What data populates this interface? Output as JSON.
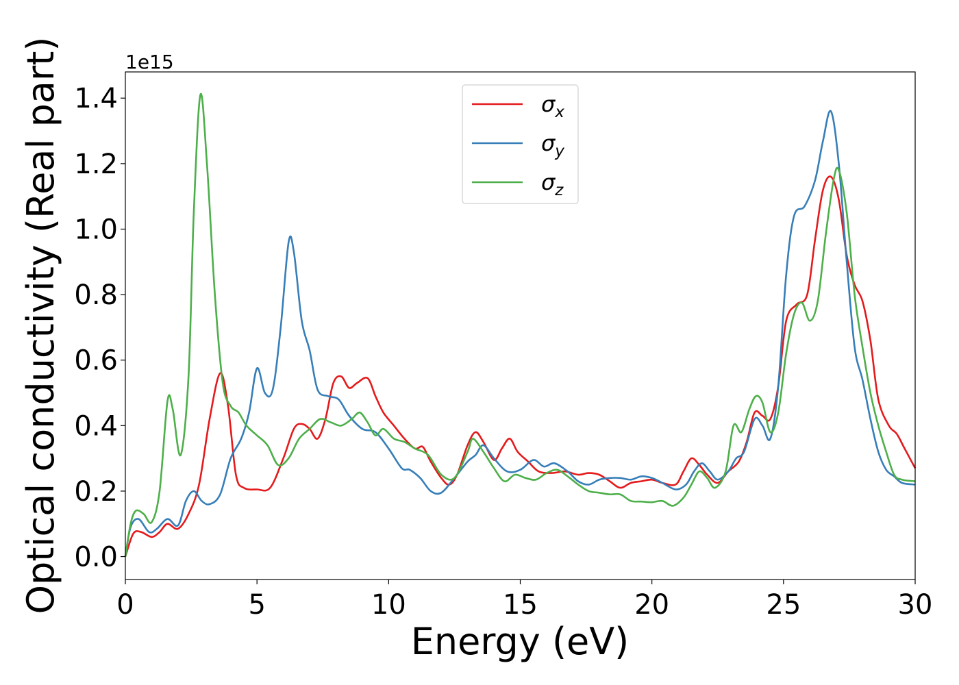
{
  "chart_data": {
    "type": "line",
    "xlabel": "Energy (eV)",
    "ylabel": "Optical conductivity (Real part)",
    "y_offset_label": "1e15",
    "xlim": [
      0,
      30
    ],
    "ylim": [
      -0.07,
      1.48
    ],
    "x_ticks": [
      0,
      5,
      10,
      15,
      20,
      25,
      30
    ],
    "x_tick_labels": [
      "0",
      "5",
      "10",
      "15",
      "20",
      "25",
      "30"
    ],
    "y_ticks": [
      0.0,
      0.2,
      0.4,
      0.6,
      0.8,
      1.0,
      1.2,
      1.4
    ],
    "y_tick_labels": [
      "0.0",
      "0.2",
      "0.4",
      "0.6",
      "0.8",
      "1.0",
      "1.2",
      "1.4"
    ],
    "grid": false,
    "legend_position": "top-center",
    "series": [
      {
        "name": "σx",
        "legend_base": "σ",
        "legend_sub": "x",
        "color": "#e41a1c",
        "points": [
          [
            0,
            0
          ],
          [
            0.3,
            0.07
          ],
          [
            0.6,
            0.075
          ],
          [
            1.0,
            0.06
          ],
          [
            1.3,
            0.075
          ],
          [
            1.6,
            0.1
          ],
          [
            2.0,
            0.085
          ],
          [
            2.4,
            0.13
          ],
          [
            2.8,
            0.22
          ],
          [
            3.2,
            0.42
          ],
          [
            3.6,
            0.56
          ],
          [
            3.9,
            0.46
          ],
          [
            4.2,
            0.25
          ],
          [
            4.5,
            0.21
          ],
          [
            5.0,
            0.205
          ],
          [
            5.5,
            0.21
          ],
          [
            6.0,
            0.3
          ],
          [
            6.4,
            0.39
          ],
          [
            6.7,
            0.405
          ],
          [
            7.0,
            0.39
          ],
          [
            7.3,
            0.36
          ],
          [
            7.6,
            0.42
          ],
          [
            7.9,
            0.53
          ],
          [
            8.2,
            0.55
          ],
          [
            8.5,
            0.515
          ],
          [
            8.8,
            0.53
          ],
          [
            9.2,
            0.545
          ],
          [
            9.5,
            0.49
          ],
          [
            9.8,
            0.44
          ],
          [
            10.2,
            0.4
          ],
          [
            10.6,
            0.36
          ],
          [
            11.0,
            0.33
          ],
          [
            11.3,
            0.335
          ],
          [
            11.6,
            0.29
          ],
          [
            12.0,
            0.24
          ],
          [
            12.3,
            0.22
          ],
          [
            12.6,
            0.25
          ],
          [
            13.0,
            0.34
          ],
          [
            13.3,
            0.38
          ],
          [
            13.6,
            0.35
          ],
          [
            14.0,
            0.295
          ],
          [
            14.3,
            0.33
          ],
          [
            14.6,
            0.36
          ],
          [
            14.9,
            0.32
          ],
          [
            15.3,
            0.29
          ],
          [
            15.7,
            0.26
          ],
          [
            16.2,
            0.255
          ],
          [
            16.7,
            0.26
          ],
          [
            17.2,
            0.25
          ],
          [
            17.6,
            0.255
          ],
          [
            18.0,
            0.25
          ],
          [
            18.4,
            0.23
          ],
          [
            18.8,
            0.21
          ],
          [
            19.2,
            0.225
          ],
          [
            19.6,
            0.23
          ],
          [
            20.0,
            0.235
          ],
          [
            20.4,
            0.225
          ],
          [
            20.9,
            0.22
          ],
          [
            21.2,
            0.26
          ],
          [
            21.5,
            0.3
          ],
          [
            21.8,
            0.28
          ],
          [
            22.1,
            0.25
          ],
          [
            22.5,
            0.225
          ],
          [
            22.9,
            0.26
          ],
          [
            23.3,
            0.29
          ],
          [
            23.6,
            0.35
          ],
          [
            23.9,
            0.44
          ],
          [
            24.2,
            0.43
          ],
          [
            24.5,
            0.42
          ],
          [
            24.8,
            0.52
          ],
          [
            25.1,
            0.72
          ],
          [
            25.5,
            0.77
          ],
          [
            25.9,
            0.8
          ],
          [
            26.2,
            0.97
          ],
          [
            26.5,
            1.12
          ],
          [
            26.8,
            1.16
          ],
          [
            27.1,
            1.09
          ],
          [
            27.4,
            0.92
          ],
          [
            27.7,
            0.83
          ],
          [
            28.0,
            0.78
          ],
          [
            28.3,
            0.66
          ],
          [
            28.6,
            0.48
          ],
          [
            29.0,
            0.4
          ],
          [
            29.3,
            0.375
          ],
          [
            29.6,
            0.33
          ],
          [
            30,
            0.27
          ]
        ]
      },
      {
        "name": "σy",
        "legend_base": "σ",
        "legend_sub": "y",
        "color": "#377eb8",
        "points": [
          [
            0,
            0
          ],
          [
            0.2,
            0.09
          ],
          [
            0.5,
            0.115
          ],
          [
            0.9,
            0.075
          ],
          [
            1.2,
            0.085
          ],
          [
            1.6,
            0.115
          ],
          [
            2.0,
            0.095
          ],
          [
            2.3,
            0.17
          ],
          [
            2.6,
            0.2
          ],
          [
            2.9,
            0.17
          ],
          [
            3.2,
            0.16
          ],
          [
            3.6,
            0.19
          ],
          [
            4.0,
            0.3
          ],
          [
            4.4,
            0.36
          ],
          [
            4.7,
            0.44
          ],
          [
            5.0,
            0.575
          ],
          [
            5.3,
            0.5
          ],
          [
            5.6,
            0.51
          ],
          [
            5.9,
            0.7
          ],
          [
            6.2,
            0.96
          ],
          [
            6.4,
            0.93
          ],
          [
            6.7,
            0.72
          ],
          [
            7.0,
            0.63
          ],
          [
            7.3,
            0.51
          ],
          [
            7.7,
            0.49
          ],
          [
            8.1,
            0.48
          ],
          [
            8.5,
            0.43
          ],
          [
            9.0,
            0.39
          ],
          [
            9.5,
            0.38
          ],
          [
            10.0,
            0.33
          ],
          [
            10.5,
            0.27
          ],
          [
            10.8,
            0.265
          ],
          [
            11.2,
            0.24
          ],
          [
            11.6,
            0.2
          ],
          [
            12.0,
            0.195
          ],
          [
            12.5,
            0.24
          ],
          [
            13.0,
            0.29
          ],
          [
            13.3,
            0.31
          ],
          [
            13.6,
            0.34
          ],
          [
            14.0,
            0.3
          ],
          [
            14.5,
            0.26
          ],
          [
            15.0,
            0.265
          ],
          [
            15.5,
            0.295
          ],
          [
            15.9,
            0.275
          ],
          [
            16.3,
            0.285
          ],
          [
            16.8,
            0.26
          ],
          [
            17.2,
            0.23
          ],
          [
            17.6,
            0.22
          ],
          [
            18.0,
            0.235
          ],
          [
            18.4,
            0.24
          ],
          [
            18.8,
            0.24
          ],
          [
            19.2,
            0.235
          ],
          [
            19.6,
            0.245
          ],
          [
            20.0,
            0.24
          ],
          [
            20.4,
            0.225
          ],
          [
            20.9,
            0.205
          ],
          [
            21.3,
            0.22
          ],
          [
            21.6,
            0.26
          ],
          [
            21.9,
            0.285
          ],
          [
            22.2,
            0.26
          ],
          [
            22.5,
            0.235
          ],
          [
            22.9,
            0.26
          ],
          [
            23.2,
            0.3
          ],
          [
            23.5,
            0.32
          ],
          [
            23.9,
            0.42
          ],
          [
            24.2,
            0.4
          ],
          [
            24.5,
            0.36
          ],
          [
            24.8,
            0.52
          ],
          [
            25.1,
            0.86
          ],
          [
            25.4,
            1.04
          ],
          [
            25.8,
            1.07
          ],
          [
            26.2,
            1.15
          ],
          [
            26.5,
            1.27
          ],
          [
            26.8,
            1.36
          ],
          [
            27.1,
            1.2
          ],
          [
            27.4,
            0.9
          ],
          [
            27.7,
            0.64
          ],
          [
            28.0,
            0.54
          ],
          [
            28.3,
            0.42
          ],
          [
            28.6,
            0.32
          ],
          [
            28.9,
            0.265
          ],
          [
            29.2,
            0.245
          ],
          [
            29.5,
            0.225
          ],
          [
            30,
            0.22
          ]
        ]
      },
      {
        "name": "σz",
        "legend_base": "σ",
        "legend_sub": "z",
        "color": "#4daf4a",
        "points": [
          [
            0,
            0
          ],
          [
            0.2,
            0.1
          ],
          [
            0.4,
            0.14
          ],
          [
            0.7,
            0.13
          ],
          [
            1.0,
            0.105
          ],
          [
            1.3,
            0.2
          ],
          [
            1.6,
            0.475
          ],
          [
            1.8,
            0.45
          ],
          [
            2.1,
            0.31
          ],
          [
            2.4,
            0.55
          ],
          [
            2.6,
            1.05
          ],
          [
            2.85,
            1.41
          ],
          [
            3.1,
            1.2
          ],
          [
            3.4,
            0.8
          ],
          [
            3.7,
            0.53
          ],
          [
            4.0,
            0.46
          ],
          [
            4.3,
            0.44
          ],
          [
            4.6,
            0.4
          ],
          [
            5.0,
            0.37
          ],
          [
            5.4,
            0.34
          ],
          [
            5.8,
            0.28
          ],
          [
            6.2,
            0.3
          ],
          [
            6.6,
            0.36
          ],
          [
            7.0,
            0.39
          ],
          [
            7.4,
            0.42
          ],
          [
            7.8,
            0.41
          ],
          [
            8.2,
            0.4
          ],
          [
            8.6,
            0.42
          ],
          [
            8.9,
            0.44
          ],
          [
            9.2,
            0.41
          ],
          [
            9.5,
            0.37
          ],
          [
            9.8,
            0.39
          ],
          [
            10.2,
            0.36
          ],
          [
            10.6,
            0.35
          ],
          [
            11.0,
            0.33
          ],
          [
            11.5,
            0.31
          ],
          [
            12.0,
            0.25
          ],
          [
            12.5,
            0.24
          ],
          [
            13.0,
            0.32
          ],
          [
            13.2,
            0.36
          ],
          [
            13.6,
            0.32
          ],
          [
            14.0,
            0.27
          ],
          [
            14.4,
            0.23
          ],
          [
            14.8,
            0.25
          ],
          [
            15.2,
            0.24
          ],
          [
            15.6,
            0.235
          ],
          [
            16.0,
            0.255
          ],
          [
            16.4,
            0.265
          ],
          [
            16.8,
            0.245
          ],
          [
            17.2,
            0.22
          ],
          [
            17.6,
            0.2
          ],
          [
            18.0,
            0.195
          ],
          [
            18.4,
            0.19
          ],
          [
            18.8,
            0.19
          ],
          [
            19.2,
            0.17
          ],
          [
            19.6,
            0.168
          ],
          [
            20.0,
            0.166
          ],
          [
            20.4,
            0.17
          ],
          [
            20.8,
            0.155
          ],
          [
            21.2,
            0.18
          ],
          [
            21.5,
            0.22
          ],
          [
            21.8,
            0.26
          ],
          [
            22.1,
            0.24
          ],
          [
            22.4,
            0.21
          ],
          [
            22.8,
            0.26
          ],
          [
            23.1,
            0.4
          ],
          [
            23.4,
            0.38
          ],
          [
            23.7,
            0.45
          ],
          [
            23.95,
            0.49
          ],
          [
            24.2,
            0.47
          ],
          [
            24.5,
            0.38
          ],
          [
            24.8,
            0.44
          ],
          [
            25.1,
            0.62
          ],
          [
            25.4,
            0.74
          ],
          [
            25.7,
            0.775
          ],
          [
            26.0,
            0.72
          ],
          [
            26.3,
            0.78
          ],
          [
            26.6,
            0.98
          ],
          [
            26.9,
            1.15
          ],
          [
            27.1,
            1.18
          ],
          [
            27.4,
            1.05
          ],
          [
            27.7,
            0.8
          ],
          [
            28.0,
            0.64
          ],
          [
            28.3,
            0.5
          ],
          [
            28.6,
            0.4
          ],
          [
            28.9,
            0.32
          ],
          [
            29.2,
            0.25
          ],
          [
            29.5,
            0.235
          ],
          [
            30,
            0.23
          ]
        ]
      }
    ]
  }
}
